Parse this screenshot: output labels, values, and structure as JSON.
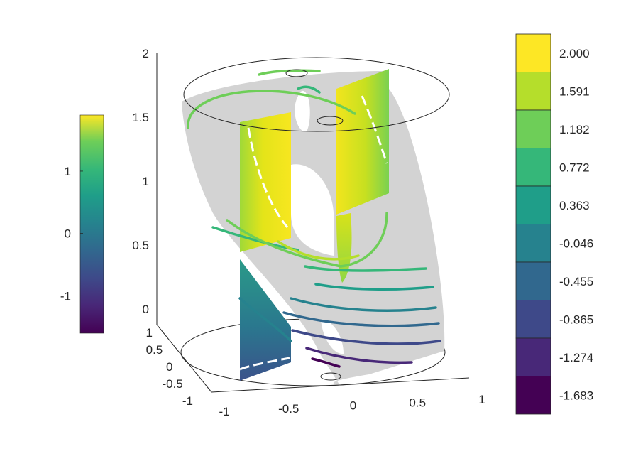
{
  "chart_data": {
    "type": "3d-surface-slices",
    "title": "",
    "grid": false,
    "axes": {
      "x_ticks": [
        "-1",
        "-0.5",
        "0",
        "0.5",
        "1"
      ],
      "y_ticks": [
        "-1",
        "-0.5",
        "0",
        "0.5",
        "1"
      ],
      "z_ticks": [
        "0",
        "0.5",
        "1",
        "1.5",
        "2"
      ],
      "xlim": [
        -1,
        1
      ],
      "ylim": [
        -1,
        1
      ],
      "zlim": [
        0,
        2
      ]
    },
    "left_colorbar": {
      "placement": "left",
      "colormap": "viridis",
      "range": [
        -1.6,
        1.9
      ],
      "ticks": [
        "1",
        "0",
        "-1"
      ]
    },
    "right_colorbar": {
      "placement": "right",
      "colormap": "viridis",
      "levels": [
        "2.000",
        "1.591",
        "1.182",
        "0.772",
        "0.363",
        "-0.046",
        "-0.455",
        "-0.865",
        "-1.274",
        "-1.683"
      ],
      "colors": [
        "#fde725",
        "#b5de2b",
        "#6ece58",
        "#35b779",
        "#1f9e89",
        "#26828e",
        "#31688e",
        "#3e4989",
        "#482878",
        "#440154"
      ]
    },
    "contour_levels": [
      -1.683,
      -1.274,
      -0.865,
      -0.455,
      -0.046,
      0.363,
      0.772,
      1.182,
      1.591,
      2.0
    ]
  }
}
